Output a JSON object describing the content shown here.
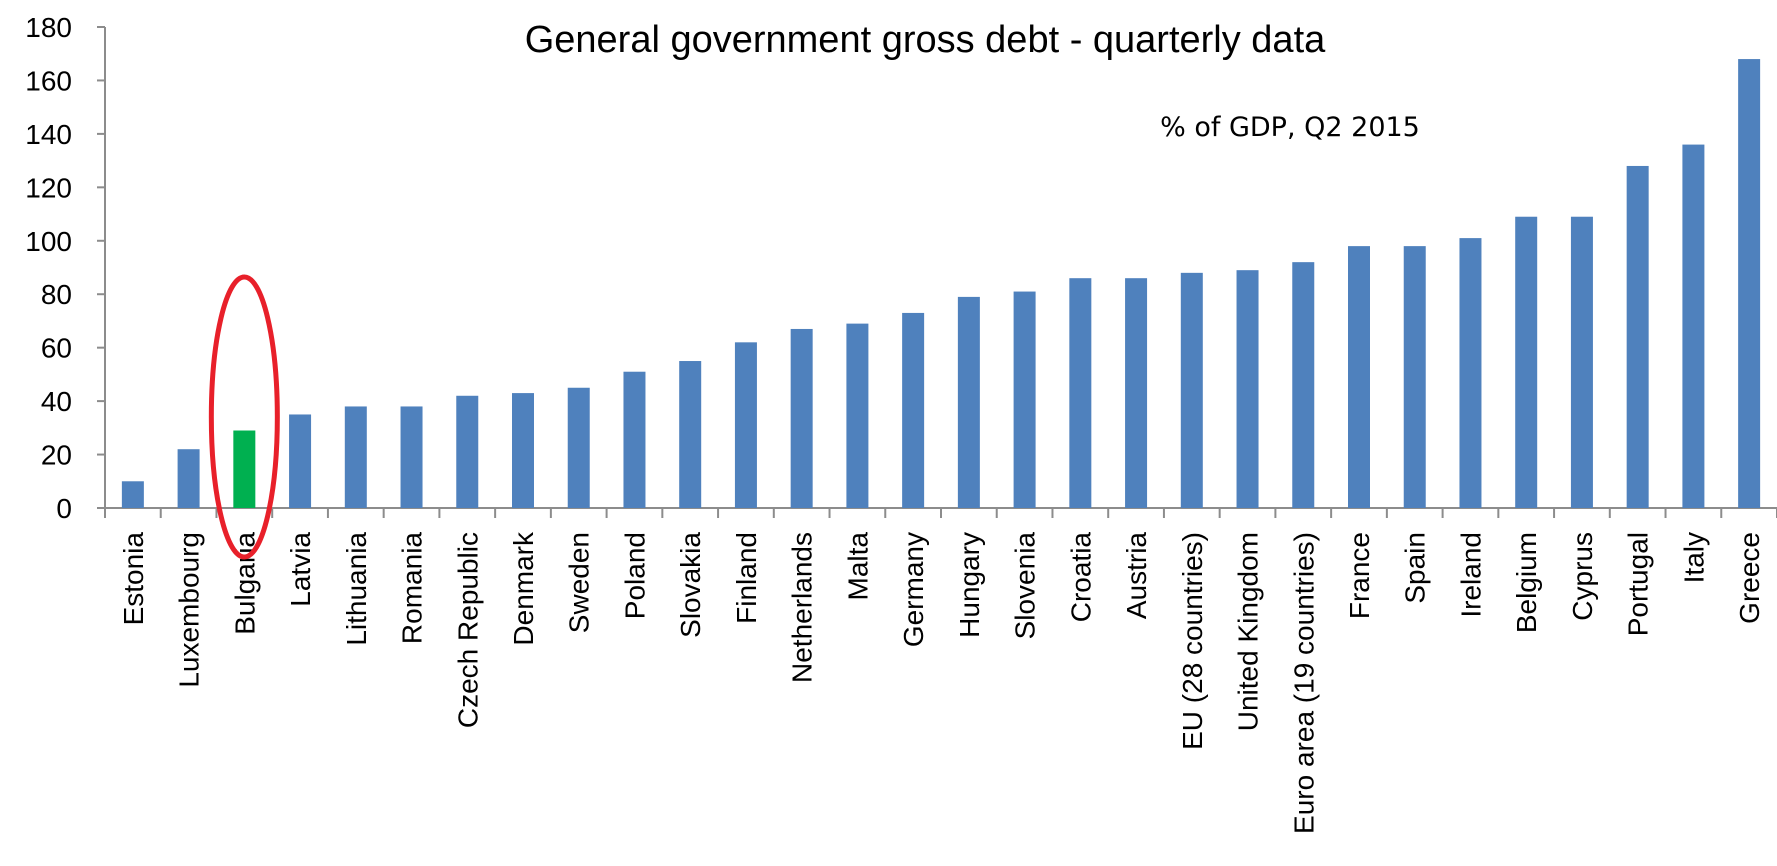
{
  "chart_data": {
    "type": "bar",
    "title": "General government gross debt - quarterly data",
    "subtitle": "% of GDP, Q2 2015",
    "xlabel": "",
    "ylabel": "",
    "ylim": [
      0,
      180
    ],
    "yticks": [
      "0",
      "20",
      "40",
      "60",
      "80",
      "100",
      "120",
      "140",
      "160",
      "180"
    ],
    "grid": false,
    "categories": [
      "Estonia",
      "Luxembourg",
      "Bulgaria",
      "Latvia",
      "Lithuania",
      "Romania",
      "Czech Republic",
      "Denmark",
      "Sweden",
      "Poland",
      "Slovakia",
      "Finland",
      "Netherlands",
      "Malta",
      "Germany",
      "Hungary",
      "Slovenia",
      "Croatia",
      "Austria",
      "EU (28 countries)",
      "United Kingdom",
      "Euro area (19 countries)",
      "France",
      "Spain",
      "Ireland",
      "Belgium",
      "Cyprus",
      "Portugal",
      "Italy",
      "Greece"
    ],
    "values": [
      10,
      22,
      29,
      35,
      38,
      38,
      42,
      43,
      45,
      51,
      55,
      62,
      67,
      69,
      73,
      79,
      81,
      86,
      86,
      88,
      89,
      92,
      98,
      98,
      101,
      109,
      109,
      128,
      136,
      168
    ],
    "colors": {
      "bar": "#4f81bd",
      "highlight": "#00b050",
      "annotation": "#e8202a"
    },
    "highlight": {
      "category": "Bulgaria",
      "marker": "red-ellipse"
    }
  }
}
